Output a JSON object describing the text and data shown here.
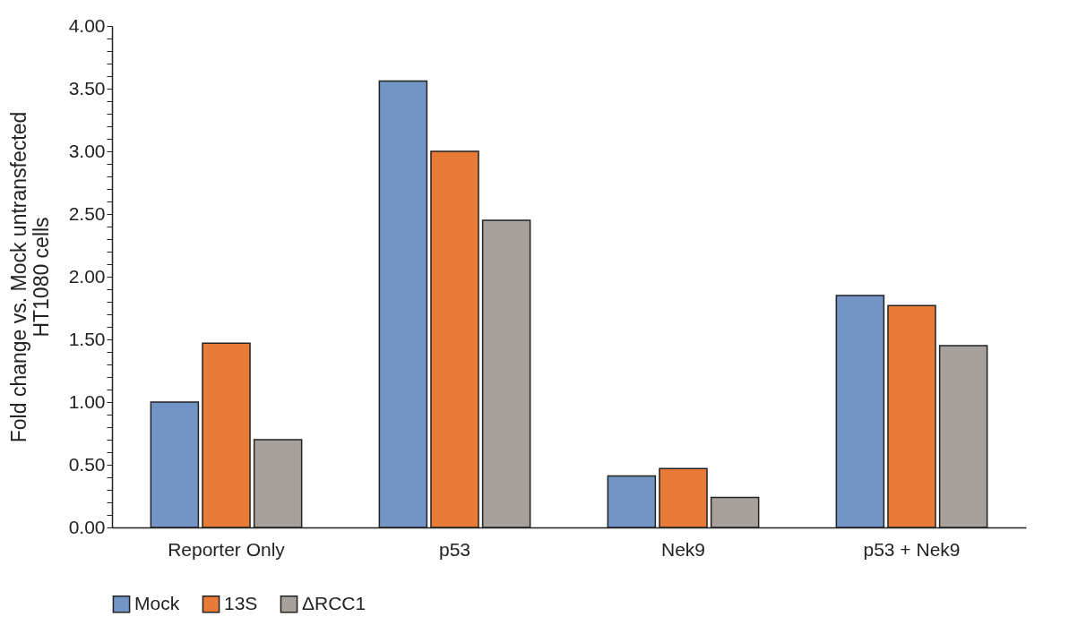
{
  "chart_data": {
    "type": "bar",
    "ylabel": "Fold change vs. Mock untransfected\nHT1080 cells",
    "categories": [
      "Reporter Only",
      "p53",
      "Nek9",
      "p53 + Nek9"
    ],
    "series": [
      {
        "name": "Mock",
        "color": "#7395c5",
        "values": [
          1.0,
          3.56,
          0.41,
          1.85
        ]
      },
      {
        "name": "13S",
        "color": "#e87b38",
        "values": [
          1.47,
          3.0,
          0.47,
          1.77
        ]
      },
      {
        "name": "ΔRCC1",
        "color": "#a8a09a",
        "values": [
          0.7,
          2.45,
          0.24,
          1.45
        ]
      }
    ],
    "ylim": [
      0,
      4
    ],
    "yticks": [
      {
        "value": 0,
        "label": "0.00"
      },
      {
        "value": 0.1,
        "label": null
      },
      {
        "value": 0.2,
        "label": null
      },
      {
        "value": 0.3,
        "label": null
      },
      {
        "value": 0.4,
        "label": null
      },
      {
        "value": 0.5,
        "label": "0.50"
      },
      {
        "value": 0.6,
        "label": null
      },
      {
        "value": 0.7,
        "label": null
      },
      {
        "value": 0.8,
        "label": null
      },
      {
        "value": 0.9,
        "label": null
      },
      {
        "value": 1,
        "label": "1.00"
      },
      {
        "value": 1.1,
        "label": null
      },
      {
        "value": 1.2,
        "label": null
      },
      {
        "value": 1.3,
        "label": null
      },
      {
        "value": 1.4,
        "label": null
      },
      {
        "value": 1.5,
        "label": "1.50"
      },
      {
        "value": 1.6,
        "label": null
      },
      {
        "value": 1.7,
        "label": null
      },
      {
        "value": 1.8,
        "label": null
      },
      {
        "value": 1.9,
        "label": null
      },
      {
        "value": 2,
        "label": "2.00"
      },
      {
        "value": 2.1,
        "label": null
      },
      {
        "value": 2.2,
        "label": null
      },
      {
        "value": 2.3,
        "label": null
      },
      {
        "value": 2.4,
        "label": null
      },
      {
        "value": 2.5,
        "label": "2.50"
      },
      {
        "value": 2.6,
        "label": null
      },
      {
        "value": 2.7,
        "label": null
      },
      {
        "value": 2.8,
        "label": null
      },
      {
        "value": 2.9,
        "label": null
      },
      {
        "value": 3,
        "label": "3.00"
      },
      {
        "value": 3.1,
        "label": null
      },
      {
        "value": 3.2,
        "label": null
      },
      {
        "value": 3.3,
        "label": null
      },
      {
        "value": 3.4,
        "label": null
      },
      {
        "value": 3.5,
        "label": "3.50"
      },
      {
        "value": 3.6,
        "label": null
      },
      {
        "value": 3.7,
        "label": null
      },
      {
        "value": 3.8,
        "label": null
      },
      {
        "value": 3.9,
        "label": null
      },
      {
        "value": 4,
        "label": "4.00"
      }
    ],
    "grid": false,
    "legend": "bottom"
  }
}
